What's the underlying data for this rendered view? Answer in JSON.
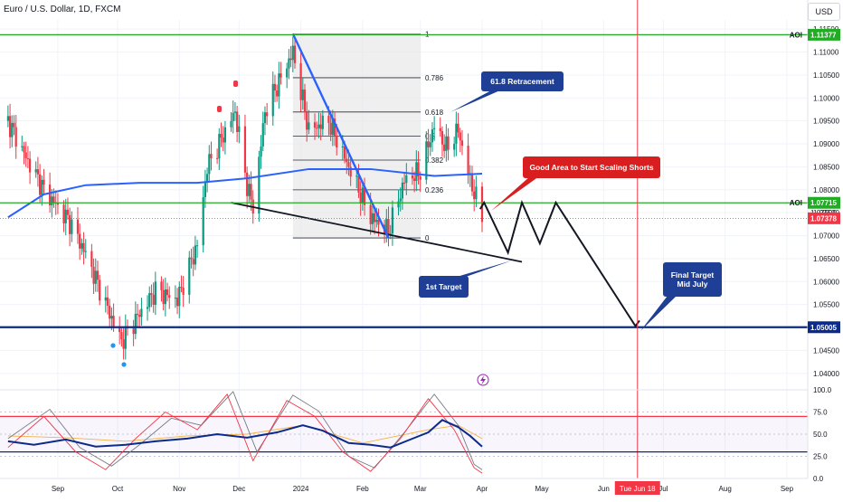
{
  "header": {
    "symbol": "Euro / U.S. Dollar, 1D, FXCM",
    "currency": "USD"
  },
  "colors": {
    "bull": "#089981",
    "bear": "#f23645",
    "ma": "#2962ff",
    "aoi": "#22ab24",
    "support": "#0c2a8a",
    "fib": "#787b86",
    "dateline": "#f23645",
    "callout": "#1e3f95",
    "callout_red": "#d81e1e"
  },
  "chart_data": [
    {
      "type": "candlestick",
      "title": "Euro / U.S. Dollar, 1D, FXCM",
      "ylim": [
        1.037,
        1.117
      ],
      "yticks": [
        1.04,
        1.045,
        1.05,
        1.055,
        1.06,
        1.065,
        1.07,
        1.075,
        1.08,
        1.085,
        1.09,
        1.095,
        1.1,
        1.105,
        1.11,
        1.115
      ],
      "ytick_labels": [
        "1.04000",
        "1.04500",
        "1.05000",
        "1.05500",
        "1.06000",
        "1.06500",
        "1.07000",
        "1.07500",
        "1.08000",
        "1.08500",
        "1.09000",
        "1.09500",
        "1.10000",
        "1.10500",
        "1.11000",
        "1.11500"
      ],
      "xticks": [
        {
          "label": "Sep",
          "date": "2023-09-01"
        },
        {
          "label": "Oct",
          "date": "2023-10-01"
        },
        {
          "label": "Nov",
          "date": "2023-11-01"
        },
        {
          "label": "Dec",
          "date": "2023-12-01"
        },
        {
          "label": "2024",
          "date": "2024-01-01"
        },
        {
          "label": "Feb",
          "date": "2024-02-01"
        },
        {
          "label": "Mar",
          "date": "2024-03-01"
        },
        {
          "label": "Apr",
          "date": "2024-04-01"
        },
        {
          "label": "May",
          "date": "2024-05-01"
        },
        {
          "label": "Jun",
          "date": "2024-06-01"
        },
        {
          "label": "Jul",
          "date": "2024-07-01"
        },
        {
          "label": "Aug",
          "date": "2024-08-01"
        },
        {
          "label": "Sep",
          "date": "2024-09-01"
        }
      ],
      "date_marker": {
        "label": "Tue Jun 18",
        "date": "2024-06-18"
      },
      "close_path": [
        {
          "date": "2023-08-07",
          "close": 1.095
        },
        {
          "date": "2023-08-16",
          "close": 1.087
        },
        {
          "date": "2023-08-25",
          "close": 1.08
        },
        {
          "date": "2023-09-07",
          "close": 1.073
        },
        {
          "date": "2023-09-15",
          "close": 1.066
        },
        {
          "date": "2023-09-27",
          "close": 1.053
        },
        {
          "date": "2023-10-03",
          "close": 1.047
        },
        {
          "date": "2023-10-12",
          "close": 1.053
        },
        {
          "date": "2023-10-20",
          "close": 1.058
        },
        {
          "date": "2023-10-31",
          "close": 1.056
        },
        {
          "date": "2023-11-10",
          "close": 1.068
        },
        {
          "date": "2023-11-15",
          "close": 1.085
        },
        {
          "date": "2023-11-29",
          "close": 1.097
        },
        {
          "date": "2023-12-05",
          "close": 1.081
        },
        {
          "date": "2023-12-08",
          "close": 1.076
        },
        {
          "date": "2023-12-14",
          "close": 1.097
        },
        {
          "date": "2023-12-28",
          "close": 1.11
        },
        {
          "date": "2024-01-05",
          "close": 1.093
        },
        {
          "date": "2024-01-15",
          "close": 1.095
        },
        {
          "date": "2024-01-25",
          "close": 1.085
        },
        {
          "date": "2024-02-05",
          "close": 1.074
        },
        {
          "date": "2024-02-14",
          "close": 1.071
        },
        {
          "date": "2024-02-22",
          "close": 1.082
        },
        {
          "date": "2024-03-01",
          "close": 1.084
        },
        {
          "date": "2024-03-08",
          "close": 1.094
        },
        {
          "date": "2024-03-14",
          "close": 1.089
        },
        {
          "date": "2024-03-20",
          "close": 1.093
        },
        {
          "date": "2024-03-26",
          "close": 1.082
        },
        {
          "date": "2024-04-01",
          "close": 1.074
        }
      ],
      "moving_average": [
        {
          "date": "2023-08-07",
          "value": 1.074
        },
        {
          "date": "2023-08-25",
          "value": 1.079
        },
        {
          "date": "2023-09-15",
          "value": 1.081
        },
        {
          "date": "2023-10-12",
          "value": 1.0815
        },
        {
          "date": "2023-11-10",
          "value": 1.0815
        },
        {
          "date": "2023-12-05",
          "value": 1.0825
        },
        {
          "date": "2024-01-05",
          "value": 1.0845
        },
        {
          "date": "2024-02-05",
          "value": 1.0845
        },
        {
          "date": "2024-03-08",
          "value": 1.083
        },
        {
          "date": "2024-04-01",
          "value": 1.0835
        }
      ],
      "fibonacci": {
        "from": {
          "date": "2023-12-28",
          "price": 1.1139
        },
        "to": {
          "date": "2024-02-14",
          "price": 1.0695
        },
        "levels": [
          {
            "ratio": 1,
            "label": "1"
          },
          {
            "ratio": 0.786,
            "label": "0.786"
          },
          {
            "ratio": 0.618,
            "label": "0.618"
          },
          {
            "ratio": 0.5,
            "label": "0.5"
          },
          {
            "ratio": 0.382,
            "label": "0.382"
          },
          {
            "ratio": 0.236,
            "label": "0.236"
          },
          {
            "ratio": 0,
            "label": "0"
          }
        ]
      },
      "horizontal_levels": [
        {
          "name": "aoi-upper",
          "label": "AOI",
          "price": 1.11377,
          "price_label": "1.11377",
          "color": "#22ab24"
        },
        {
          "name": "aoi-lower",
          "label": "AOI",
          "price": 1.07715,
          "price_label": "1.07715",
          "color": "#22ab24"
        },
        {
          "name": "support",
          "label": "",
          "price": 1.05005,
          "price_label": "1.05005",
          "color": "#0c2a8a"
        }
      ],
      "current_price": {
        "price": 1.07378,
        "label": "1.07378",
        "color": "#f23645"
      },
      "hidden_price_label": "1.07500",
      "trendlines": [
        {
          "name": "support-trendline",
          "points": [
            {
              "date": "2023-11-27",
              "price": 1.0772
            },
            {
              "date": "2024-04-21",
              "price": 1.0643
            }
          ],
          "color": "#131722"
        },
        {
          "name": "downtrend-line",
          "points": [
            {
              "date": "2023-12-28",
              "price": 1.114
            },
            {
              "date": "2024-02-14",
              "price": 1.0695
            }
          ],
          "color": "#2962ff"
        }
      ],
      "projection": [
        {
          "date": "2024-03-31",
          "price": 1.0758
        },
        {
          "date": "2024-04-02",
          "price": 1.0772
        },
        {
          "date": "2024-04-14",
          "price": 1.0663
        },
        {
          "date": "2024-04-21",
          "price": 1.0772
        },
        {
          "date": "2024-04-30",
          "price": 1.0683
        },
        {
          "date": "2024-05-08",
          "price": 1.0772
        },
        {
          "date": "2024-06-17",
          "price": 1.0503
        },
        {
          "date": "2024-06-19",
          "price": 1.0515
        }
      ],
      "annotations": [
        {
          "name": "retracement-callout",
          "text": "61.8 Retracement",
          "style": "blue"
        },
        {
          "name": "scaling-shorts-callout",
          "text": "Good Area to Start Scaling Shorts",
          "style": "red"
        },
        {
          "name": "first-target-callout",
          "text": "1st Target",
          "style": "blue"
        },
        {
          "name": "final-target-callout",
          "text": "Final Target\nMid July",
          "style": "blue"
        }
      ]
    },
    {
      "type": "line",
      "ylim": [
        0,
        100
      ],
      "yticks": [
        0,
        25,
        50,
        75,
        100
      ],
      "ytick_labels": [
        "0.0",
        "25.0",
        "50.0",
        "75.0",
        "100.0"
      ],
      "bands": [
        {
          "value": 70,
          "color": "#f23645"
        },
        {
          "value": 30,
          "color": "#0c2a8a"
        }
      ],
      "series": [
        {
          "color": "#0c2a8a",
          "points": [
            {
              "date": "2023-08-07",
              "value": 42
            },
            {
              "date": "2023-08-20",
              "value": 38
            },
            {
              "date": "2023-09-05",
              "value": 44
            },
            {
              "date": "2023-09-20",
              "value": 36
            },
            {
              "date": "2023-10-05",
              "value": 38
            },
            {
              "date": "2023-10-20",
              "value": 42
            },
            {
              "date": "2023-11-05",
              "value": 45
            },
            {
              "date": "2023-11-20",
              "value": 50
            },
            {
              "date": "2023-12-05",
              "value": 46
            },
            {
              "date": "2023-12-20",
              "value": 52
            },
            {
              "date": "2024-01-02",
              "value": 60
            },
            {
              "date": "2024-01-12",
              "value": 54
            },
            {
              "date": "2024-01-25",
              "value": 40
            },
            {
              "date": "2024-02-05",
              "value": 38
            },
            {
              "date": "2024-02-15",
              "value": 35
            },
            {
              "date": "2024-02-25",
              "value": 44
            },
            {
              "date": "2024-03-05",
              "value": 52
            },
            {
              "date": "2024-03-12",
              "value": 66
            },
            {
              "date": "2024-03-20",
              "value": 58
            },
            {
              "date": "2024-03-26",
              "value": 48
            },
            {
              "date": "2024-04-01",
              "value": 36
            }
          ]
        },
        {
          "color": "#f23645",
          "points": [
            {
              "date": "2023-08-07",
              "value": 35
            },
            {
              "date": "2023-08-25",
              "value": 70
            },
            {
              "date": "2023-09-10",
              "value": 30
            },
            {
              "date": "2023-09-25",
              "value": 10
            },
            {
              "date": "2023-10-10",
              "value": 45
            },
            {
              "date": "2023-10-25",
              "value": 75
            },
            {
              "date": "2023-11-10",
              "value": 55
            },
            {
              "date": "2023-11-25",
              "value": 95
            },
            {
              "date": "2023-12-08",
              "value": 20
            },
            {
              "date": "2023-12-25",
              "value": 88
            },
            {
              "date": "2024-01-08",
              "value": 70
            },
            {
              "date": "2024-01-22",
              "value": 30
            },
            {
              "date": "2024-02-05",
              "value": 8
            },
            {
              "date": "2024-02-20",
              "value": 45
            },
            {
              "date": "2024-03-05",
              "value": 90
            },
            {
              "date": "2024-03-18",
              "value": 55
            },
            {
              "date": "2024-03-28",
              "value": 12
            },
            {
              "date": "2024-04-01",
              "value": 6
            }
          ]
        },
        {
          "color": "#787b86",
          "points": [
            {
              "date": "2023-08-07",
              "value": 45
            },
            {
              "date": "2023-08-28",
              "value": 78
            },
            {
              "date": "2023-09-12",
              "value": 35
            },
            {
              "date": "2023-09-28",
              "value": 14
            },
            {
              "date": "2023-10-12",
              "value": 38
            },
            {
              "date": "2023-10-28",
              "value": 68
            },
            {
              "date": "2023-11-12",
              "value": 60
            },
            {
              "date": "2023-11-28",
              "value": 98
            },
            {
              "date": "2023-12-10",
              "value": 30
            },
            {
              "date": "2023-12-28",
              "value": 94
            },
            {
              "date": "2024-01-10",
              "value": 76
            },
            {
              "date": "2024-01-25",
              "value": 25
            },
            {
              "date": "2024-02-07",
              "value": 12
            },
            {
              "date": "2024-02-22",
              "value": 52
            },
            {
              "date": "2024-03-08",
              "value": 95
            },
            {
              "date": "2024-03-20",
              "value": 60
            },
            {
              "date": "2024-03-28",
              "value": 16
            },
            {
              "date": "2024-04-01",
              "value": 10
            }
          ]
        },
        {
          "color": "#f5b041",
          "points": [
            {
              "date": "2023-08-07",
              "value": 48
            },
            {
              "date": "2023-09-05",
              "value": 46
            },
            {
              "date": "2023-10-05",
              "value": 42
            },
            {
              "date": "2023-11-05",
              "value": 48
            },
            {
              "date": "2023-12-05",
              "value": 50
            },
            {
              "date": "2024-01-02",
              "value": 60
            },
            {
              "date": "2024-02-01",
              "value": 40
            },
            {
              "date": "2024-03-05",
              "value": 55
            },
            {
              "date": "2024-03-20",
              "value": 60
            },
            {
              "date": "2024-04-01",
              "value": 45
            }
          ]
        }
      ]
    }
  ]
}
